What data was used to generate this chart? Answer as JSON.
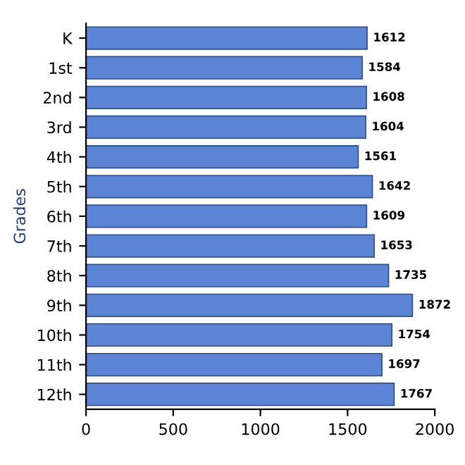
{
  "chart_data": {
    "type": "bar",
    "orientation": "horizontal",
    "ylabel": "Grades",
    "categories": [
      "K",
      "1st",
      "2nd",
      "3rd",
      "4th",
      "5th",
      "6th",
      "7th",
      "8th",
      "9th",
      "10th",
      "11th",
      "12th"
    ],
    "values": [
      1612,
      1584,
      1608,
      1604,
      1561,
      1642,
      1609,
      1653,
      1735,
      1872,
      1754,
      1697,
      1767
    ],
    "color": "#5b84d4",
    "xlim": [
      0,
      2000
    ],
    "xticks": [
      0,
      500,
      1000,
      1500,
      2000
    ],
    "data_labels": true,
    "grid": false
  }
}
